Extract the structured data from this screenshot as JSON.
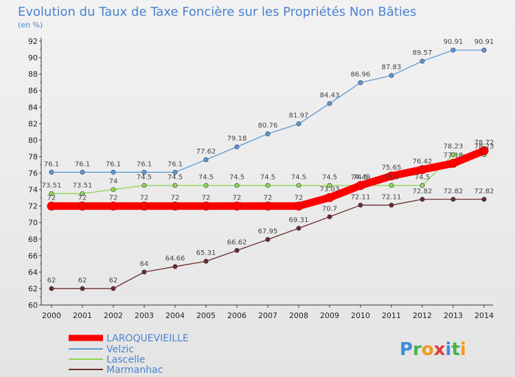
{
  "chart_data": {
    "type": "line",
    "title": "Evolution du Taux de Taxe Foncière sur les Propriétés Non Bâties",
    "subtitle": "(en %)",
    "x": [
      "2000",
      "2001",
      "2002",
      "2003",
      "2004",
      "2005",
      "2006",
      "2007",
      "2008",
      "2009",
      "2010",
      "2011",
      "2012",
      "2013",
      "2014"
    ],
    "ylim": [
      60,
      92
    ],
    "yticks": [
      60,
      62,
      64,
      66,
      68,
      70,
      72,
      74,
      76,
      78,
      80,
      82,
      84,
      86,
      88,
      90,
      92
    ],
    "grid": false,
    "legend_position": "bottom-left",
    "series": [
      {
        "name": "LAROQUEVIEILLE",
        "color": "#ff0000",
        "values": [
          72,
          72,
          72,
          72,
          72,
          72,
          72,
          72,
          72,
          73.03,
          74.49,
          75.65,
          76.42,
          77.18,
          78.72
        ],
        "labels": [
          "72",
          "72",
          "72",
          "72",
          "72",
          "72",
          "72",
          "72",
          "72",
          "73.03",
          "74.49",
          "75.65",
          "76.42",
          "77.18",
          "78.72"
        ]
      },
      {
        "name": "Velzic",
        "color": "#5c9ad2",
        "values": [
          76.1,
          76.1,
          76.1,
          76.1,
          76.1,
          77.62,
          79.18,
          80.76,
          81.97,
          84.43,
          86.96,
          87.83,
          89.57,
          90.91,
          90.91
        ],
        "labels": [
          "76.1",
          "76.1",
          "76.1",
          "76.1",
          "76.1",
          "77.62",
          "79.18",
          "80.76",
          "81.97",
          "84.43",
          "86.96",
          "87.83",
          "89.57",
          "90.91",
          "90.91"
        ]
      },
      {
        "name": "Lascelle",
        "color": "#8fd64f",
        "values": [
          73.51,
          73.51,
          74,
          74.5,
          74.5,
          74.5,
          74.5,
          74.5,
          74.5,
          74.5,
          74.5,
          74.5,
          74.5,
          78.23,
          78.23
        ],
        "labels": [
          "73.51",
          "73.51",
          "74",
          "74.5",
          "74.5",
          "74.5",
          "74.5",
          "74.5",
          "74.5",
          "74.5",
          "74.5",
          "74.5",
          "74.5",
          "78.23",
          "78.23"
        ]
      },
      {
        "name": "Marmanhac",
        "color": "#6b2a2a",
        "values": [
          62,
          62,
          62,
          64,
          64.66,
          65.31,
          66.62,
          67.95,
          69.31,
          70.7,
          72.11,
          72.11,
          72.82,
          72.82,
          72.82
        ],
        "labels": [
          "62",
          "62",
          "62",
          "64",
          "64.66",
          "65.31",
          "66.62",
          "67.95",
          "69.31",
          "70.7",
          "72.11",
          "72.11",
          "72.82",
          "72.82",
          "72.82"
        ]
      }
    ]
  },
  "logo": {
    "text": "Proxiti"
  }
}
